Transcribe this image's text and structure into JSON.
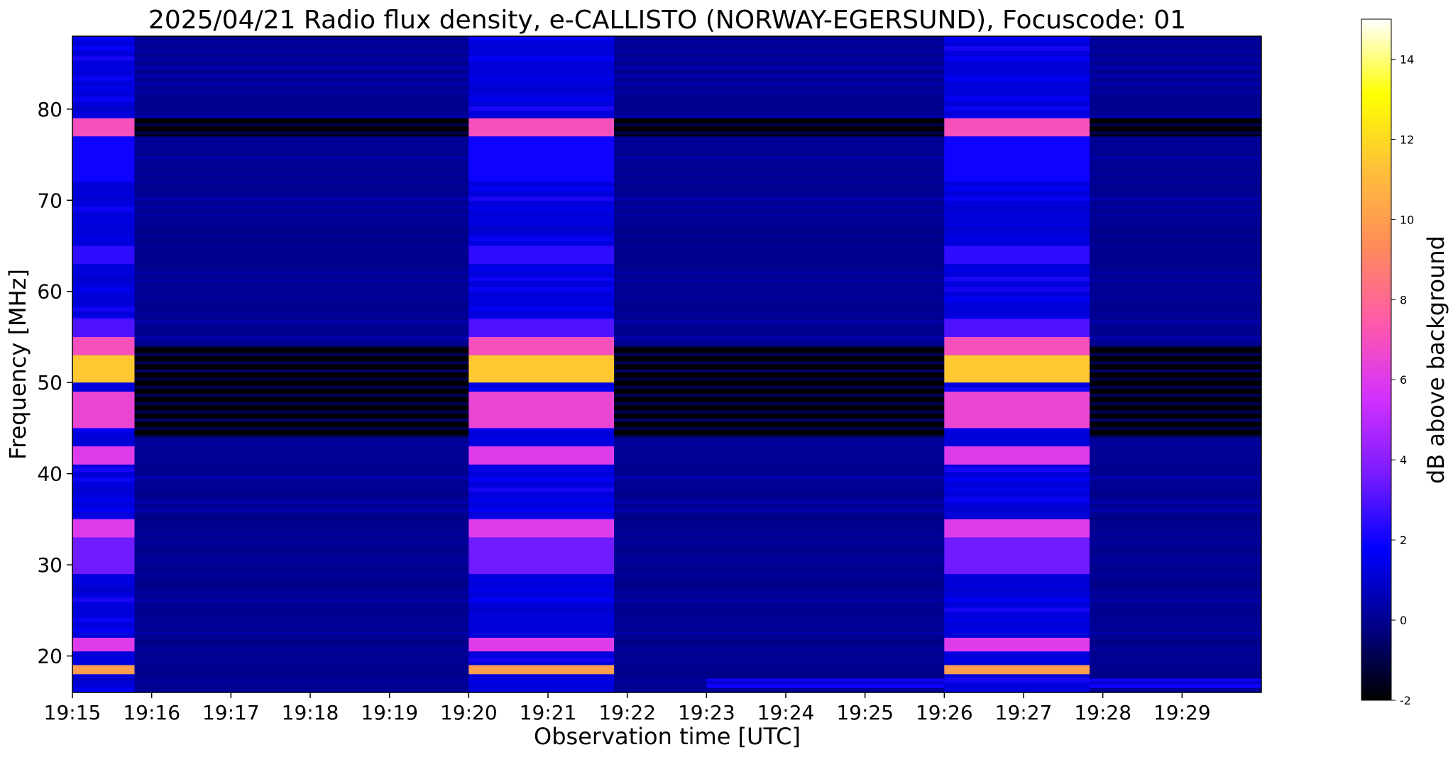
{
  "chart_data": {
    "type": "heatmap",
    "title": "2025/04/21  Radio flux density, e-CALLISTO (NORWAY-EGERSUND), Focuscode: 01",
    "xlabel": "Observation time [UTC]",
    "ylabel": "Frequency [MHz]",
    "colorbar_label": "dB above background",
    "x_ticks": [
      "19:15",
      "19:16",
      "19:17",
      "19:18",
      "19:19",
      "19:20",
      "19:21",
      "19:22",
      "19:23",
      "19:24",
      "19:25",
      "19:26",
      "19:27",
      "19:28",
      "19:29"
    ],
    "xlim_minutes": [
      0,
      15
    ],
    "y_ticks": [
      20,
      30,
      40,
      50,
      60,
      70,
      80
    ],
    "ylim": [
      16,
      88
    ],
    "colorbar_ticks": [
      -2,
      0,
      2,
      4,
      6,
      8,
      10,
      12,
      14
    ],
    "clim": [
      -2,
      15
    ],
    "colormap": [
      "#000000",
      "#00008a",
      "#0000ff",
      "#7a1cff",
      "#d431ff",
      "#ff5aa8",
      "#ff8c5a",
      "#ffbf3a",
      "#ffff00",
      "#ffffff"
    ],
    "calibration_segments": [
      {
        "start": "19:15",
        "end": "19:15:47"
      },
      {
        "start": "19:20",
        "end": "19:21:50"
      },
      {
        "start": "19:26",
        "end": "19:27:50"
      }
    ],
    "calibration_bands": [
      {
        "freq_mhz": [
          77,
          79
        ],
        "db": 7
      },
      {
        "freq_mhz": [
          72,
          77
        ],
        "db": 2
      },
      {
        "freq_mhz": [
          63,
          65
        ],
        "db": 2.5
      },
      {
        "freq_mhz": [
          55,
          57
        ],
        "db": 3
      },
      {
        "freq_mhz": [
          53,
          55
        ],
        "db": 7
      },
      {
        "freq_mhz": [
          50,
          53
        ],
        "db": 11.5
      },
      {
        "freq_mhz": [
          45,
          49
        ],
        "db": 6.5
      },
      {
        "freq_mhz": [
          41,
          43
        ],
        "db": 6
      },
      {
        "freq_mhz": [
          33,
          35
        ],
        "db": 6
      },
      {
        "freq_mhz": [
          29,
          33
        ],
        "db": 3.5
      },
      {
        "freq_mhz": [
          20.5,
          22
        ],
        "db": 6
      },
      {
        "freq_mhz": [
          18,
          19
        ],
        "db": 10
      }
    ],
    "quiet_features": [
      {
        "freq_mhz": [
          77,
          79
        ],
        "db": -2
      },
      {
        "freq_mhz": [
          44,
          54
        ],
        "db": -2
      },
      {
        "freq_mhz": [
          55,
          57
        ],
        "db": 0
      },
      {
        "freq_mhz": [
          16.5,
          17.5
        ],
        "db": 2,
        "start": "19:23"
      }
    ],
    "grid": false
  }
}
